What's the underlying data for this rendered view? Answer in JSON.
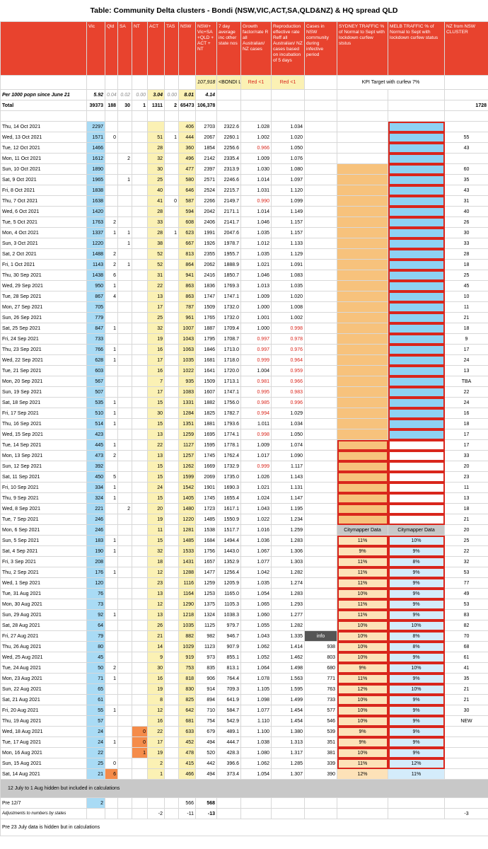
{
  "header": {
    "title": "Table: Community Delta clusters - Bondi (NSW,VIC,ACT,SA,QLD&NZ) & HQ spread QLD"
  },
  "columns": [
    "Vic",
    "Qld",
    "SA",
    "NT",
    "ACT",
    "TAS",
    "NSW",
    "NSW+ Vic+SA +QLD + ACT + NT",
    "7 day average inc other state nos",
    "Growth factor/rate R all Australian/ NZ cases",
    "Reproduction effective rate Reff all Australian/ NZ cases based on incubation of 5 days",
    "Cases in NSW community during infective period",
    "SYDNEY TRAFFIC % of Normal to Sept with lockdown curfew ststus",
    "MELB TRAFFIC % of Normal to Sept with lockdown curfew status",
    "NZ from NSW CLUSTER"
  ],
  "kpi": {
    "total": "107,918",
    "total_note": "<BONDI Linked",
    "growth": "Red <1",
    "reff": "Red <1",
    "traffic": "KPI Target with curfew 7%"
  },
  "per1000": {
    "label": "Per 1000 popn since June 21",
    "values": [
      "5.92",
      "0.04",
      "0.02",
      "0.00",
      "3.04",
      "0.00",
      "8.01",
      "4.14"
    ]
  },
  "total": {
    "label": "Total",
    "values": [
      "39373",
      "188",
      "30",
      "1",
      "1311",
      "2",
      "65473",
      "106,378"
    ],
    "nz": "1728"
  },
  "rows": [
    [
      "Thu, 14 Oct 2021",
      "2297",
      null,
      null,
      null,
      null,
      null,
      "406",
      "2703",
      "2322.6",
      "1.028",
      "1.034",
      null,
      null,
      null,
      null
    ],
    [
      "Wed, 13 Oct 2021",
      "1571",
      "0",
      null,
      null,
      "51",
      "1",
      "444",
      "2067",
      "2260.1",
      "1.002",
      "1.020",
      null,
      null,
      null,
      "55"
    ],
    [
      "Tue, 12 Oct 2021",
      "1466",
      null,
      null,
      null,
      "28",
      null,
      "360",
      "1854",
      "2256.6",
      "0.966",
      "1.050",
      null,
      null,
      null,
      "43"
    ],
    [
      "Mon, 11 Oct 2021",
      "1612",
      null,
      "2",
      null,
      "32",
      null,
      "496",
      "2142",
      "2335.4",
      "1.009",
      "1.076",
      null,
      null,
      null,
      null
    ],
    [
      "Sun, 10 Oct 2021",
      "1890",
      null,
      null,
      null,
      "30",
      null,
      "477",
      "2397",
      "2313.9",
      "1.030",
      "1.080",
      null,
      null,
      null,
      "60"
    ],
    [
      "Sat, 9 Oct 2021",
      "1965",
      null,
      "1",
      null,
      "25",
      null,
      "580",
      "2571",
      "2246.6",
      "1.014",
      "1.097",
      null,
      null,
      null,
      "35"
    ],
    [
      "Fri, 8 Oct 2021",
      "1838",
      null,
      null,
      null,
      "40",
      null,
      "646",
      "2524",
      "2215.7",
      "1.031",
      "1.120",
      null,
      null,
      null,
      "43"
    ],
    [
      "Thu, 7 Oct 2021",
      "1638",
      null,
      null,
      null,
      "41",
      "0",
      "587",
      "2266",
      "2149.7",
      "0.990",
      "1.099",
      null,
      null,
      null,
      "31"
    ],
    [
      "Wed, 6 Oct 2021",
      "1420",
      null,
      null,
      null,
      "28",
      null,
      "594",
      "2042",
      "2171.1",
      "1.014",
      "1.149",
      null,
      null,
      null,
      "40"
    ],
    [
      "Tue, 5 Oct 2021",
      "1763",
      "2",
      null,
      null,
      "33",
      null,
      "608",
      "2406",
      "2141.7",
      "1.046",
      "1.157",
      null,
      null,
      null,
      "26"
    ],
    [
      "Mon, 4 Oct 2021",
      "1337",
      "1",
      "1",
      null,
      "28",
      "1",
      "623",
      "1991",
      "2047.6",
      "1.035",
      "1.157",
      null,
      null,
      null,
      "30"
    ],
    [
      "Sun, 3 Oct 2021",
      "1220",
      null,
      "1",
      null,
      "38",
      null,
      "667",
      "1926",
      "1978.7",
      "1.012",
      "1.133",
      null,
      null,
      null,
      "33"
    ],
    [
      "Sat, 2 Oct 2021",
      "1488",
      "2",
      null,
      null,
      "52",
      null,
      "813",
      "2355",
      "1955.7",
      "1.035",
      "1.129",
      null,
      null,
      null,
      "28"
    ],
    [
      "Fri, 1 Oct 2021",
      "1143",
      "2",
      "1",
      null,
      "52",
      null,
      "864",
      "2062",
      "1888.9",
      "1.021",
      "1.091",
      null,
      null,
      null,
      "18"
    ],
    [
      "Thu, 30 Sep 2021",
      "1438",
      "6",
      null,
      null,
      "31",
      null,
      "941",
      "2416",
      "1850.7",
      "1.046",
      "1.083",
      null,
      null,
      null,
      "25"
    ],
    [
      "Wed, 29 Sep 2021",
      "950",
      "1",
      null,
      null,
      "22",
      null,
      "863",
      "1836",
      "1769.3",
      "1.013",
      "1.035",
      null,
      null,
      null,
      "45"
    ],
    [
      "Tue, 28 Sep 2021",
      "867",
      "4",
      null,
      null,
      "13",
      null,
      "863",
      "1747",
      "1747.1",
      "1.009",
      "1.020",
      null,
      null,
      null,
      "10"
    ],
    [
      "Mon, 27 Sep 2021",
      "705",
      null,
      null,
      null,
      "17",
      null,
      "787",
      "1509",
      "1732.0",
      "1.000",
      "1.008",
      null,
      null,
      null,
      "11"
    ],
    [
      "Sun, 26 Sep 2021",
      "779",
      null,
      null,
      null,
      "25",
      null,
      "961",
      "1765",
      "1732.0",
      "1.001",
      "1.002",
      null,
      null,
      null,
      "21"
    ],
    [
      "Sat, 25 Sep 2021",
      "847",
      "1",
      null,
      null,
      "32",
      null,
      "1007",
      "1887",
      "1709.4",
      "1.000",
      "0.998",
      null,
      null,
      null,
      "18"
    ],
    [
      "Fri, 24 Sep 2021",
      "733",
      null,
      null,
      null,
      "19",
      null,
      "1043",
      "1795",
      "1708.7",
      "0.997",
      "0.978",
      null,
      null,
      null,
      "9"
    ],
    [
      "Thu, 23 Sep 2021",
      "766",
      "1",
      null,
      null,
      "16",
      null,
      "1063",
      "1846",
      "1713.0",
      "0.997",
      "0.976",
      null,
      null,
      null,
      "17"
    ],
    [
      "Wed, 22 Sep 2021",
      "628",
      "1",
      null,
      null,
      "17",
      null,
      "1035",
      "1681",
      "1718.0",
      "0.999",
      "0.964",
      null,
      null,
      null,
      "24"
    ],
    [
      "Tue, 21 Sep 2021",
      "603",
      null,
      null,
      null,
      "16",
      null,
      "1022",
      "1641",
      "1720.0",
      "1.004",
      "0.959",
      null,
      null,
      null,
      "13"
    ],
    [
      "Mon, 20 Sep 2021",
      "567",
      null,
      null,
      null,
      "7",
      null,
      "935",
      "1509",
      "1713.1",
      "0.981",
      "0.966",
      null,
      null,
      null,
      "TBA"
    ],
    [
      "Sun, 19 Sep 2021",
      "507",
      null,
      null,
      null,
      "17",
      null,
      "1083",
      "1607",
      "1747.1",
      "0.995",
      "0.983",
      null,
      null,
      null,
      "22"
    ],
    [
      "Sat, 18 Sep 2021",
      "535",
      "1",
      null,
      null,
      "15",
      null,
      "1331",
      "1882",
      "1756.0",
      "0.985",
      "0.996",
      null,
      null,
      null,
      "24"
    ],
    [
      "Fri, 17 Sep 2021",
      "510",
      "1",
      null,
      null,
      "30",
      null,
      "1284",
      "1825",
      "1782.7",
      "0.994",
      "1.029",
      null,
      null,
      null,
      "16"
    ],
    [
      "Thu, 16 Sep 2021",
      "514",
      "1",
      null,
      null,
      "15",
      null,
      "1351",
      "1881",
      "1793.6",
      "1.011",
      "1.034",
      null,
      null,
      null,
      "18"
    ],
    [
      "Wed, 15 Sep 2021",
      "423",
      null,
      null,
      null,
      "13",
      null,
      "1259",
      "1695",
      "1774.1",
      "0.998",
      "1.050",
      null,
      null,
      null,
      "17"
    ],
    [
      "Tue, 14 Sep 2021",
      "445",
      "1",
      null,
      null,
      "22",
      null,
      "1127",
      "1595",
      "1778.1",
      "1.009",
      "1.074",
      null,
      null,
      null,
      "17"
    ],
    [
      "Mon, 13 Sep 2021",
      "473",
      "2",
      null,
      null,
      "13",
      null,
      "1257",
      "1745",
      "1762.4",
      "1.017",
      "1.090",
      null,
      null,
      null,
      "33"
    ],
    [
      "Sun, 12 Sep 2021",
      "392",
      null,
      null,
      null,
      "15",
      null,
      "1262",
      "1669",
      "1732.9",
      "0.999",
      "1.117",
      null,
      null,
      null,
      "20"
    ],
    [
      "Sat, 11 Sep 2021",
      "450",
      "5",
      null,
      null,
      "15",
      null,
      "1599",
      "2069",
      "1735.0",
      "1.026",
      "1.143",
      null,
      null,
      null,
      "23"
    ],
    [
      "Fri, 10 Sep 2021",
      "334",
      "1",
      null,
      null,
      "24",
      null,
      "1542",
      "1901",
      "1690.3",
      "1.021",
      "1.131",
      null,
      null,
      null,
      "11"
    ],
    [
      "Thu, 9 Sep 2021",
      "324",
      "1",
      null,
      null,
      "15",
      null,
      "1405",
      "1745",
      "1655.4",
      "1.024",
      "1.147",
      null,
      null,
      null,
      "13"
    ],
    [
      "Wed, 8 Sep 2021",
      "221",
      null,
      "2",
      null,
      "20",
      null,
      "1480",
      "1723",
      "1617.1",
      "1.043",
      "1.195",
      null,
      null,
      null,
      "18"
    ],
    [
      "Tue, 7 Sep 2021",
      "246",
      null,
      null,
      null,
      "19",
      null,
      "1220",
      "1485",
      "1550.9",
      "1.022",
      "1.234",
      null,
      null,
      null,
      "21"
    ],
    [
      "Mon, 6 Sep 2021",
      "246",
      null,
      null,
      null,
      "11",
      null,
      "1281",
      "1538",
      "1517.7",
      "1.016",
      "1.259",
      null,
      "Citymapper Data",
      "Citymapper Data",
      "20"
    ],
    [
      "Sun, 5 Sep 2021",
      "183",
      "1",
      null,
      null,
      "15",
      null,
      "1485",
      "1684",
      "1494.4",
      "1.036",
      "1.283",
      null,
      "11%",
      "10%",
      "25"
    ],
    [
      "Sat, 4 Sep 2021",
      "190",
      "1",
      null,
      null,
      "32",
      null,
      "1533",
      "1756",
      "1443.0",
      "1.067",
      "1.306",
      null,
      "9%",
      "9%",
      "22"
    ],
    [
      "Fri, 3 Sep 2021",
      "208",
      null,
      null,
      null,
      "18",
      null,
      "1431",
      "1657",
      "1352.9",
      "1.077",
      "1.303",
      null,
      "11%",
      "8%",
      "32"
    ],
    [
      "Thu, 2 Sep 2021",
      "176",
      "1",
      null,
      null,
      "12",
      null,
      "1288",
      "1477",
      "1256.4",
      "1.042",
      "1.282",
      null,
      "11%",
      "9%",
      "53"
    ],
    [
      "Wed, 1 Sep 2021",
      "120",
      null,
      null,
      null,
      "23",
      null,
      "1116",
      "1259",
      "1205.9",
      "1.035",
      "1.274",
      null,
      "11%",
      "9%",
      "77"
    ],
    [
      "Tue, 31 Aug 2021",
      "76",
      null,
      null,
      null,
      "13",
      null,
      "1164",
      "1253",
      "1165.0",
      "1.054",
      "1.283",
      null,
      "10%",
      "9%",
      "49"
    ],
    [
      "Mon, 30 Aug 2021",
      "73",
      null,
      null,
      null,
      "12",
      null,
      "1290",
      "1375",
      "1105.3",
      "1.065",
      "1.293",
      null,
      "11%",
      "9%",
      "53"
    ],
    [
      "Sun, 29 Aug 2021",
      "92",
      "1",
      null,
      null,
      "13",
      null,
      "1218",
      "1324",
      "1038.3",
      "1.060",
      "1.277",
      null,
      "11%",
      "9%",
      "83"
    ],
    [
      "Sat, 28 Aug 2021",
      "64",
      null,
      null,
      null,
      "26",
      null,
      "1035",
      "1125",
      "979.7",
      "1.055",
      "1.282",
      null,
      "10%",
      "10%",
      "82"
    ],
    [
      "Fri, 27 Aug 2021",
      "79",
      null,
      null,
      null,
      "21",
      null,
      "882",
      "982",
      "946.7",
      "1.043",
      "1.335",
      "info",
      "10%",
      "8%",
      "70"
    ],
    [
      "Thu, 26 Aug 2021",
      "80",
      null,
      null,
      null,
      "14",
      null,
      "1029",
      "1123",
      "907.9",
      "1.062",
      "1.414",
      "938",
      "10%",
      "8%",
      "68"
    ],
    [
      "Wed, 25 Aug 2021",
      "45",
      null,
      null,
      null,
      "9",
      null,
      "919",
      "973",
      "855.1",
      "1.052",
      "1.462",
      "803",
      "10%",
      "9%",
      "61"
    ],
    [
      "Tue, 24 Aug 2021",
      "50",
      "2",
      null,
      null,
      "30",
      null,
      "753",
      "835",
      "813.1",
      "1.064",
      "1.498",
      "680",
      "9%",
      "10%",
      "41"
    ],
    [
      "Mon, 23 Aug 2021",
      "71",
      "1",
      null,
      null,
      "16",
      null,
      "818",
      "906",
      "764.4",
      "1.078",
      "1.563",
      "771",
      "11%",
      "9%",
      "35"
    ],
    [
      "Sun, 22 Aug 2021",
      "65",
      null,
      null,
      null,
      "19",
      null,
      "830",
      "914",
      "709.3",
      "1.105",
      "1.595",
      "763",
      "12%",
      "10%",
      "21"
    ],
    [
      "Sat, 21 Aug 2021",
      "61",
      null,
      null,
      null,
      "8",
      null,
      "825",
      "894",
      "641.9",
      "1.098",
      "1.499",
      "733",
      "10%",
      "9%",
      "21"
    ],
    [
      "Fri, 20 Aug 2021",
      "55",
      "1",
      null,
      null,
      "12",
      null,
      "642",
      "710",
      "584.7",
      "1.077",
      "1.454",
      "577",
      "10%",
      "9%",
      "30"
    ],
    [
      "Thu, 19 Aug 2021",
      "57",
      null,
      null,
      null,
      "16",
      null,
      "681",
      "754",
      "542.9",
      "1.110",
      "1.454",
      "546",
      "10%",
      "9%",
      "NEW"
    ],
    [
      "Wed, 18 Aug 2021",
      "24",
      null,
      null,
      "0",
      "22",
      null,
      "633",
      "679",
      "489.1",
      "1.100",
      "1.380",
      "539",
      "9%",
      "9%",
      null
    ],
    [
      "Tue, 17 Aug 2021",
      "24",
      "1",
      null,
      "0",
      "17",
      null,
      "452",
      "494",
      "444.7",
      "1.038",
      "1.313",
      "351",
      "9%",
      "9%",
      null
    ],
    [
      "Mon, 16 Aug 2021",
      "22",
      null,
      null,
      "1",
      "19",
      null,
      "478",
      "520",
      "428.3",
      "1.080",
      "1.317",
      "381",
      "10%",
      "9%",
      null
    ],
    [
      "Sun, 15 Aug 2021",
      "25",
      "0",
      null,
      null,
      "2",
      null,
      "415",
      "442",
      "396.6",
      "1.062",
      "1.285",
      "339",
      "11%",
      "12%",
      null
    ],
    [
      "Sat, 14 Aug 2021",
      "21",
      "6",
      null,
      null,
      "1",
      null,
      "466",
      "494",
      "373.4",
      "1.054",
      "1.307",
      "390",
      "12%",
      "11%",
      null
    ]
  ],
  "footer": {
    "hidden_note": "12 July to 1 Aug hidden but included in calculations",
    "pre": {
      "label": "Pre 12/7",
      "vic": "2",
      "nsw": "566",
      "total": "568"
    },
    "adjust": {
      "label": "Adjustments to numbers by states",
      "act": "-2",
      "nsw": "-11",
      "total": "-13",
      "nz": "-3"
    },
    "pre23_note": "Pre 23 July data is hidden but in calculations"
  }
}
